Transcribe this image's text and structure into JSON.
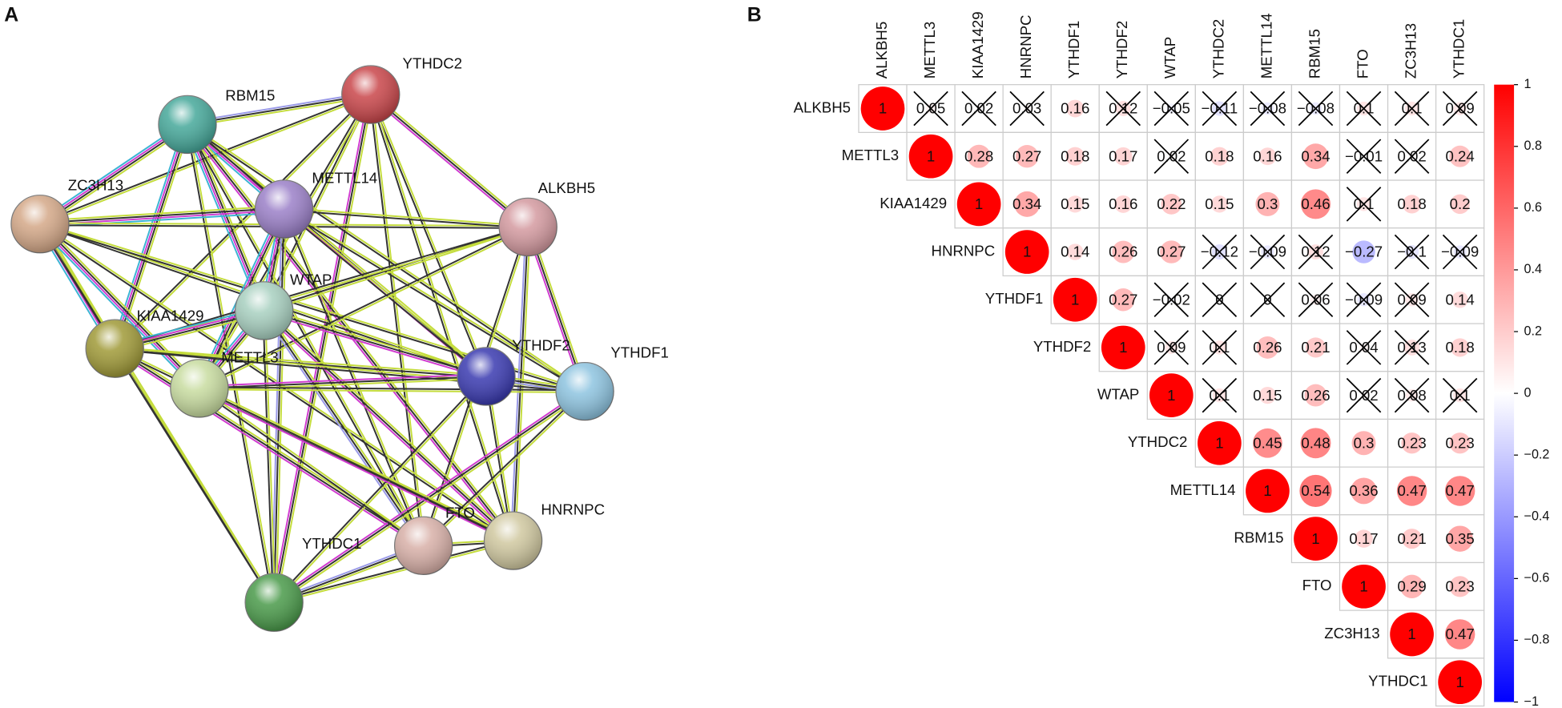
{
  "chart_data": [
    {
      "type": "network",
      "label": "A",
      "nodes": [
        "YTHDC2",
        "RBM15",
        "ZC3H13",
        "METTL14",
        "ALKBH5",
        "WTAP",
        "KIAA1429",
        "YTHDF2",
        "YTHDF1",
        "METTL3",
        "FTO",
        "HNRNPC",
        "YTHDC1"
      ],
      "colors": [
        "#c9464a",
        "#46a89a",
        "#d4a888",
        "#9b80c8",
        "#d49aa0",
        "#a8d0c0",
        "#a09a38",
        "#3a3ab0",
        "#8ec4e0",
        "#c8dca0",
        "#d8b0a8",
        "#d0c8a0",
        "#4a9a4a"
      ]
    },
    {
      "type": "corrplot",
      "label": "B",
      "variables": [
        "ALKBH5",
        "METTL3",
        "KIAA1429",
        "HNRNPC",
        "YTHDF1",
        "YTHDF2",
        "WTAP",
        "YTHDC2",
        "METTL14",
        "RBM15",
        "FTO",
        "ZC3H13",
        "YTHDC1"
      ],
      "values": [
        [
          1,
          0.05,
          0.02,
          0.03,
          0.16,
          0.12,
          -0.05,
          -0.11,
          -0.08,
          -0.08,
          0.1,
          0.1,
          0.09
        ],
        [
          null,
          1,
          0.28,
          0.27,
          0.18,
          0.17,
          0.02,
          0.18,
          0.16,
          0.34,
          -0.01,
          0.02,
          0.24
        ],
        [
          null,
          null,
          1,
          0.34,
          0.15,
          0.16,
          0.22,
          0.15,
          0.3,
          0.46,
          0.1,
          0.18,
          0.2
        ],
        [
          null,
          null,
          null,
          1,
          0.14,
          0.26,
          0.27,
          -0.12,
          -0.09,
          0.12,
          -0.27,
          -0.1,
          -0.09
        ],
        [
          null,
          null,
          null,
          null,
          1,
          0.27,
          -0.02,
          0,
          0,
          0.06,
          -0.09,
          0.09,
          0.14
        ],
        [
          null,
          null,
          null,
          null,
          null,
          1,
          0.09,
          0.1,
          0.26,
          0.21,
          0.04,
          0.13,
          0.18
        ],
        [
          null,
          null,
          null,
          null,
          null,
          null,
          1,
          0.1,
          0.15,
          0.26,
          0.02,
          0.08,
          0.1
        ],
        [
          null,
          null,
          null,
          null,
          null,
          null,
          null,
          1,
          0.45,
          0.48,
          0.3,
          0.23,
          0.23
        ],
        [
          null,
          null,
          null,
          null,
          null,
          null,
          null,
          null,
          1,
          0.54,
          0.36,
          0.47,
          0.47
        ],
        [
          null,
          null,
          null,
          null,
          null,
          null,
          null,
          null,
          null,
          1,
          0.17,
          0.21,
          0.35
        ],
        [
          null,
          null,
          null,
          null,
          null,
          null,
          null,
          null,
          null,
          null,
          1,
          0.29,
          0.23
        ],
        [
          null,
          null,
          null,
          null,
          null,
          null,
          null,
          null,
          null,
          null,
          null,
          1,
          0.47
        ],
        [
          null,
          null,
          null,
          null,
          null,
          null,
          null,
          null,
          null,
          null,
          null,
          null,
          1
        ]
      ],
      "value_labels": [
        [
          "1",
          "0.05",
          "0.02",
          "0.03",
          "0.16",
          "0.12",
          "−0.05",
          "−0.11",
          "−0.08",
          "−0.08",
          "0.1",
          "0.1",
          "0.09"
        ],
        [
          null,
          "1",
          "0.28",
          "0.27",
          "0.18",
          "0.17",
          "0.02",
          "0.18",
          "0.16",
          "0.34",
          "−0.01",
          "0.02",
          "0.24"
        ],
        [
          null,
          null,
          "1",
          "0.34",
          "0.15",
          "0.16",
          "0.22",
          "0.15",
          "0.3",
          "0.46",
          "0.1",
          "0.18",
          "0.2"
        ],
        [
          null,
          null,
          null,
          "1",
          "0.14",
          "0.26",
          "0.27",
          "−0.12",
          "−0.09",
          "0.12",
          "−0.27",
          "−0.1",
          "−0.09"
        ],
        [
          null,
          null,
          null,
          null,
          "1",
          "0.27",
          "−0.02",
          "0",
          "0",
          "0.06",
          "−0.09",
          "0.09",
          "0.14"
        ],
        [
          null,
          null,
          null,
          null,
          null,
          "1",
          "0.09",
          "0.1",
          "0.26",
          "0.21",
          "0.04",
          "0.13",
          "0.18"
        ],
        [
          null,
          null,
          null,
          null,
          null,
          null,
          "1",
          "0.1",
          "0.15",
          "0.26",
          "0.02",
          "0.08",
          "0.1"
        ],
        [
          null,
          null,
          null,
          null,
          null,
          null,
          null,
          "1",
          "0.45",
          "0.48",
          "0.3",
          "0.23",
          "0.23"
        ],
        [
          null,
          null,
          null,
          null,
          null,
          null,
          null,
          null,
          "1",
          "0.54",
          "0.36",
          "0.47",
          "0.47"
        ],
        [
          null,
          null,
          null,
          null,
          null,
          null,
          null,
          null,
          null,
          "1",
          "0.17",
          "0.21",
          "0.35"
        ],
        [
          null,
          null,
          null,
          null,
          null,
          null,
          null,
          null,
          null,
          null,
          "1",
          "0.29",
          "0.23"
        ],
        [
          null,
          null,
          null,
          null,
          null,
          null,
          null,
          null,
          null,
          null,
          null,
          "1",
          "0.47"
        ],
        [
          null,
          null,
          null,
          null,
          null,
          null,
          null,
          null,
          null,
          null,
          null,
          null,
          "1"
        ]
      ],
      "crossed": [
        [
          false,
          true,
          true,
          true,
          false,
          true,
          true,
          true,
          true,
          true,
          true,
          true,
          true
        ],
        [
          null,
          false,
          false,
          false,
          false,
          false,
          true,
          false,
          false,
          false,
          true,
          true,
          false
        ],
        [
          null,
          null,
          false,
          false,
          false,
          false,
          false,
          false,
          false,
          false,
          true,
          false,
          false
        ],
        [
          null,
          null,
          null,
          false,
          false,
          false,
          false,
          true,
          true,
          true,
          false,
          true,
          true
        ],
        [
          null,
          null,
          null,
          null,
          false,
          false,
          true,
          true,
          true,
          true,
          true,
          true,
          false
        ],
        [
          null,
          null,
          null,
          null,
          null,
          false,
          true,
          true,
          false,
          false,
          true,
          true,
          false
        ],
        [
          null,
          null,
          null,
          null,
          null,
          null,
          false,
          true,
          false,
          false,
          true,
          true,
          true
        ],
        [
          null,
          null,
          null,
          null,
          null,
          null,
          null,
          false,
          false,
          false,
          false,
          false,
          false
        ],
        [
          null,
          null,
          null,
          null,
          null,
          null,
          null,
          null,
          false,
          false,
          false,
          false,
          false
        ],
        [
          null,
          null,
          null,
          null,
          null,
          null,
          null,
          null,
          null,
          false,
          false,
          false,
          false
        ],
        [
          null,
          null,
          null,
          null,
          null,
          null,
          null,
          null,
          null,
          null,
          false,
          false,
          false
        ],
        [
          null,
          null,
          null,
          null,
          null,
          null,
          null,
          null,
          null,
          null,
          null,
          false,
          false
        ],
        [
          null,
          null,
          null,
          null,
          null,
          null,
          null,
          null,
          null,
          null,
          null,
          null,
          false
        ]
      ],
      "colormap": [
        "#0000ff",
        "#ffffff",
        "#ff0000"
      ],
      "clim": [
        -1,
        1
      ],
      "cticks": [
        1,
        0.8,
        0.6,
        0.4,
        0.2,
        0,
        {
          "value": -0.2,
          "label": "−0.2"
        },
        {
          "value": -0.4,
          "label": "−0.4"
        },
        {
          "value": -0.6,
          "label": "−0.6"
        },
        {
          "value": -0.8,
          "label": "−0.8"
        },
        {
          "value": -1,
          "label": "−1"
        }
      ]
    }
  ]
}
